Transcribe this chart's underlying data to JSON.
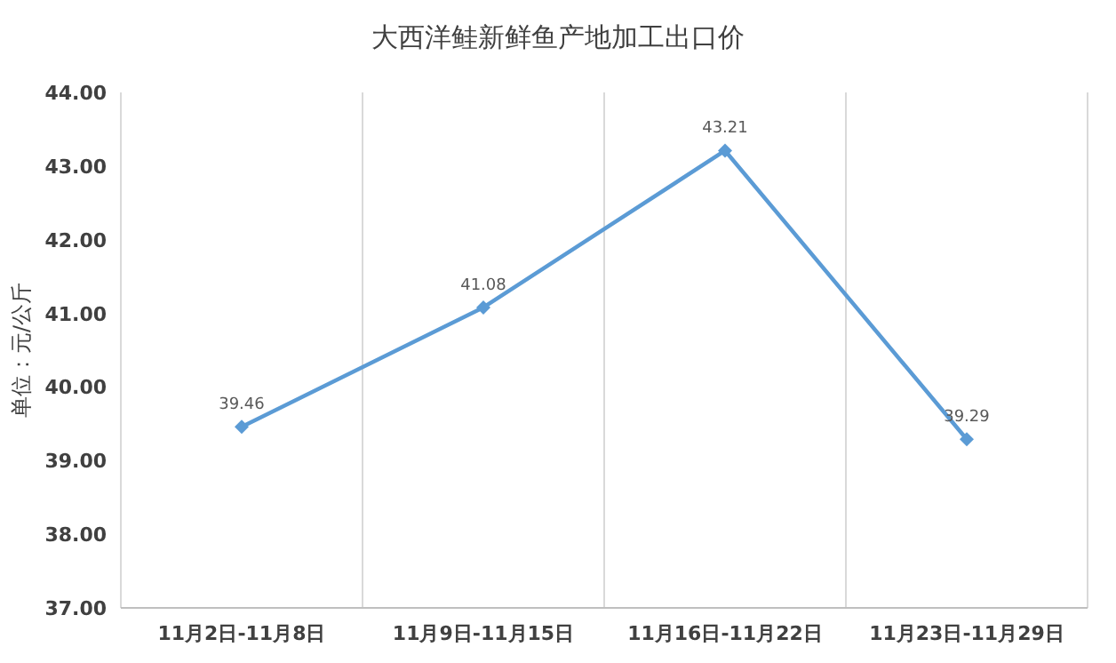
{
  "chart_data": {
    "type": "line",
    "title": "大西洋鲑新鲜鱼产地加工出口价",
    "ylabel": "单位：元/公斤",
    "categories": [
      "11月2日-11月8日",
      "11月9日-11月15日",
      "11月16日-11月22日",
      "11月23日-11月29日"
    ],
    "series": [
      {
        "color": "#5b9bd5",
        "values": [
          39.46,
          41.08,
          43.21,
          39.29
        ]
      }
    ],
    "ylim": [
      37,
      44
    ],
    "yticks": [
      {
        "value": 37,
        "label": "37.00"
      },
      {
        "value": 38,
        "label": "38.00"
      },
      {
        "value": 39,
        "label": "39.00"
      },
      {
        "value": 40,
        "label": "40.00"
      },
      {
        "value": 41,
        "label": "41.00"
      },
      {
        "value": 42,
        "label": "42.00"
      },
      {
        "value": 43,
        "label": "43.00"
      },
      {
        "value": 44,
        "label": "44.00"
      }
    ],
    "grid": "x",
    "marker": "diamond",
    "data_labels": true
  }
}
